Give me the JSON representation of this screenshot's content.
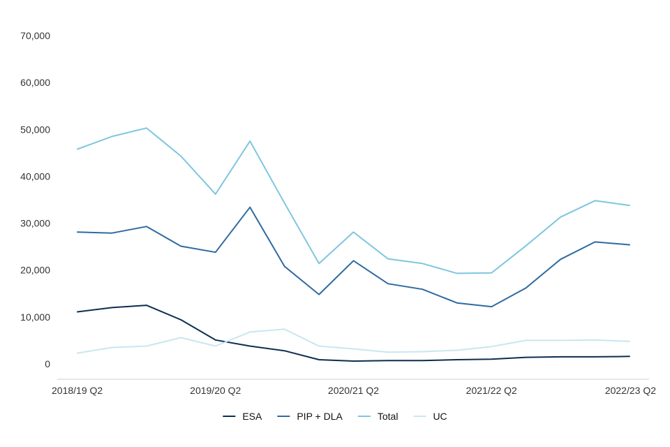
{
  "chart_data": {
    "type": "line",
    "title": "",
    "xlabel": "",
    "ylabel": "",
    "ylim": [
      0,
      70000
    ],
    "y_ticks": [
      0,
      10000,
      20000,
      30000,
      40000,
      50000,
      60000,
      70000
    ],
    "y_tick_labels": [
      "0",
      "10,000",
      "20,000",
      "30,000",
      "40,000",
      "50,000",
      "60,000",
      "70,000"
    ],
    "categories": [
      "2018/19 Q2",
      "2018/19 Q3",
      "2018/19 Q4",
      "2019/20 Q1",
      "2019/20 Q2",
      "2019/20 Q3",
      "2019/20 Q4",
      "2020/21 Q1",
      "2020/21 Q2",
      "2020/21 Q3",
      "2020/21 Q4",
      "2021/22 Q1",
      "2021/22 Q2",
      "2021/22 Q3",
      "2021/22 Q4",
      "2022/23 Q1",
      "2022/23 Q2"
    ],
    "x_tick_labels": [
      "2018/19 Q2",
      "2019/20 Q2",
      "2020/21 Q2",
      "2021/22 Q2",
      "2022/23 Q2"
    ],
    "legend_position": "bottom",
    "series": [
      {
        "name": "ESA",
        "color": "#0b2e4f",
        "values": [
          11100,
          12000,
          12500,
          9400,
          5100,
          3800,
          2800,
          900,
          600,
          700,
          700,
          900,
          1000,
          1400,
          1500,
          1500,
          1600
        ]
      },
      {
        "name": "PIP + DLA",
        "color": "#2e6aa1",
        "values": [
          28100,
          27900,
          29300,
          25100,
          23800,
          33400,
          20800,
          14800,
          22000,
          17100,
          15900,
          13000,
          12200,
          16200,
          22300,
          26000,
          25400
        ]
      },
      {
        "name": "Total",
        "color": "#7ec6df",
        "values": [
          45800,
          48500,
          50300,
          44300,
          36200,
          47500,
          34300,
          21400,
          28100,
          22400,
          21400,
          19300,
          19400,
          25200,
          31300,
          34800,
          33800
        ]
      },
      {
        "name": "UC",
        "color": "#c9e6f0",
        "values": [
          2300,
          3500,
          3800,
          5600,
          3800,
          6800,
          7400,
          3800,
          3200,
          2500,
          2600,
          2900,
          3700,
          5000,
          5000,
          5100,
          4800
        ]
      }
    ]
  }
}
